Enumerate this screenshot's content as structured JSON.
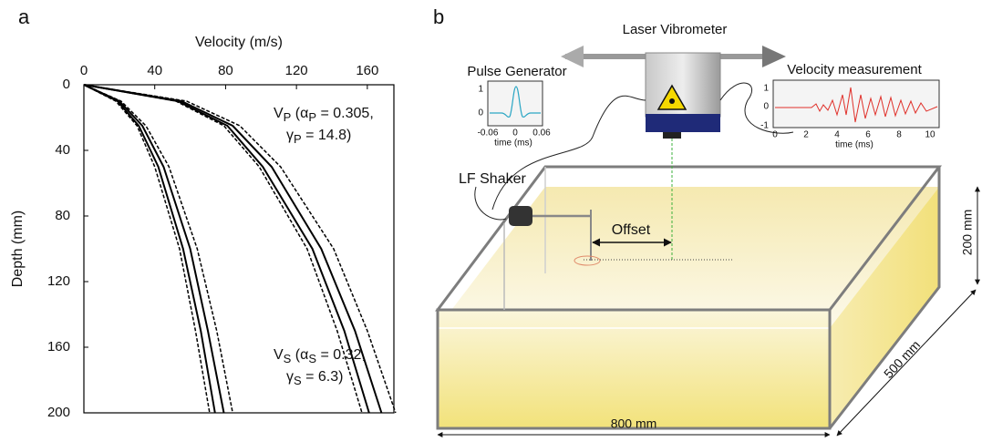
{
  "figure_labels": [
    "a",
    "b"
  ],
  "chart_data": {
    "type": "line",
    "x_label": "Velocity (m/s)",
    "y_label": "Depth (mm)",
    "xlim": [
      0,
      175
    ],
    "ylim": [
      0,
      200
    ],
    "xticks": [
      0,
      40,
      80,
      120,
      160
    ],
    "yticks": [
      0,
      40,
      80,
      120,
      160,
      200
    ],
    "y": [
      0,
      10,
      25,
      50,
      100,
      150,
      200
    ],
    "series": [
      {
        "color": "#000000",
        "dashed": true,
        "values": [
          0,
          52,
          79,
          99,
          126,
          143,
          157
        ]
      },
      {
        "color": "#000000",
        "dashed": false,
        "values": [
          0,
          53,
          81,
          101,
          129,
          147,
          161
        ]
      },
      {
        "color": "#000000",
        "dashed": false,
        "values": [
          0,
          55,
          84,
          106,
          134,
          153,
          168
        ]
      },
      {
        "color": "#000000",
        "dashed": true,
        "values": [
          0,
          58,
          88,
          111,
          141,
          160,
          176
        ]
      },
      {
        "color": "#000000",
        "dashed": true,
        "values": [
          0,
          18,
          30,
          40,
          54,
          63,
          71
        ]
      },
      {
        "color": "#000000",
        "dashed": false,
        "values": [
          0,
          19,
          31,
          42,
          56,
          66,
          74
        ]
      },
      {
        "color": "#000000",
        "dashed": false,
        "values": [
          0,
          20,
          33,
          45,
          60,
          70,
          79
        ]
      },
      {
        "color": "#000000",
        "dashed": true,
        "values": [
          0,
          21,
          35,
          48,
          64,
          75,
          84
        ]
      }
    ],
    "annotations": [
      {
        "lines": [
          [
            {
              "text": "V"
            },
            {
              "text": "P",
              "sub": true
            },
            {
              "text": " (α"
            },
            {
              "text": "P",
              "sub": true
            },
            {
              "text": " = 0.305,"
            }
          ],
          [
            {
              "text": "γ"
            },
            {
              "text": "P",
              "sub": true
            },
            {
              "text": " = 14.8)"
            }
          ]
        ]
      },
      {
        "lines": [
          [
            {
              "text": "V"
            },
            {
              "text": "S",
              "sub": true
            },
            {
              "text": " (α"
            },
            {
              "text": "S",
              "sub": true
            },
            {
              "text": " = 0.32,"
            }
          ],
          [
            {
              "text": "γ"
            },
            {
              "text": "S",
              "sub": true
            },
            {
              "text": " = 6.3)"
            }
          ]
        ]
      }
    ]
  },
  "diagram": {
    "laser": "Laser Vibrometer",
    "pulse_generator": {
      "title": "Pulse Generator",
      "yticks": [
        "1",
        "0"
      ],
      "xticks": [
        "-0.06",
        "0",
        "0.06"
      ],
      "x_label": "time (ms)"
    },
    "velocity": {
      "title": "Velocity measurement",
      "yticks": [
        "1",
        "0",
        "-1"
      ],
      "xticks": [
        "0",
        "2",
        "4",
        "6",
        "8",
        "10"
      ],
      "x_label": "time (ms)"
    },
    "shaker": "LF Shaker",
    "offset": "Offset",
    "height": "200 mm",
    "depth": "500 mm",
    "width": "800 mm"
  }
}
